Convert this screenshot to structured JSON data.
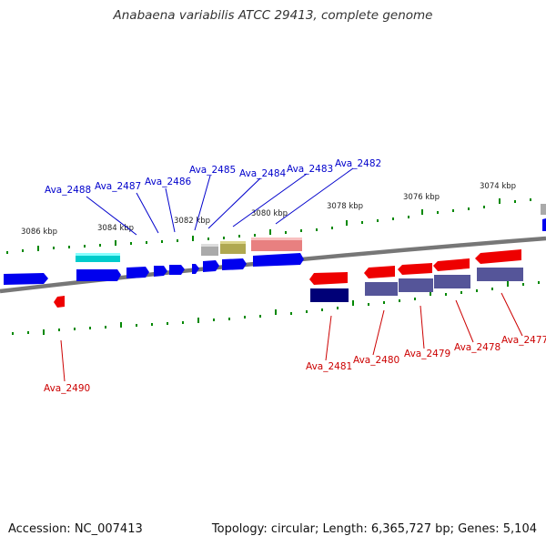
{
  "title": "Anabaena variabilis ATCC 29413, complete genome",
  "footer": {
    "accession": "Accession: NC_007413",
    "summary": "Topology: circular; Length: 6,365,727 bp; Genes: 5,104"
  },
  "scale_labels": [
    "3086 kbp",
    "3084 kbp",
    "3082 kbp",
    "3080 kbp",
    "3078 kbp",
    "3076 kbp",
    "3074 kbp"
  ],
  "gene_labels_top": [
    "Ava_2488",
    "Ava_2487",
    "Ava_2486",
    "Ava_2485",
    "Ava_2484",
    "Ava_2483",
    "Ava_2482"
  ],
  "gene_labels_bottom": [
    "Ava_2490",
    "Ava_2481",
    "Ava_2480",
    "Ava_2479",
    "Ava_2478",
    "Ava_2477"
  ],
  "colors": {
    "forward": "#0000ee",
    "reverse": "#ee0000",
    "cyan": "#00cccc",
    "grey": "#aaaaaa",
    "olive": "#b0a850",
    "pink": "#e88080",
    "navy": "#000077",
    "slate": "#555599",
    "tick": "#008800",
    "backbone": "#777777"
  }
}
